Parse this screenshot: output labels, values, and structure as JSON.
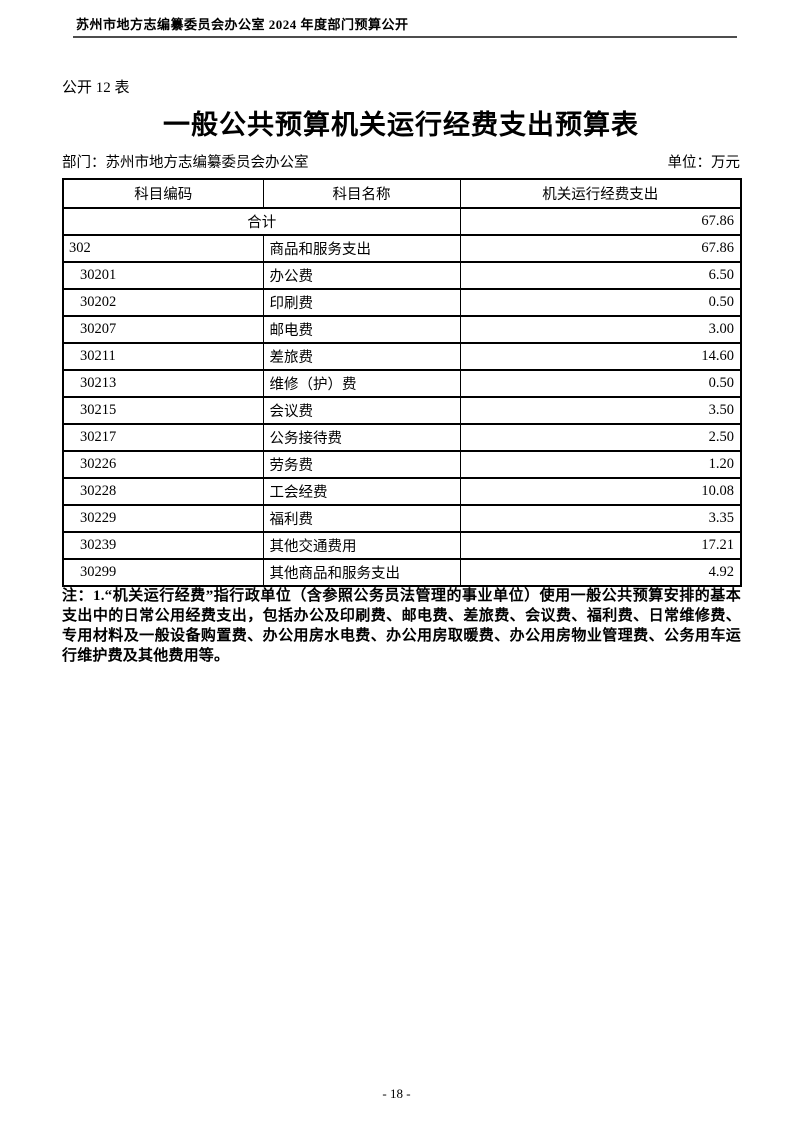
{
  "page": {
    "header": "苏州市地方志编纂委员会办公室 2024 年度部门预算公开",
    "table_label": "公开 12 表",
    "title": "一般公共预算机关运行经费支出预算表",
    "department_label": "部门：苏州市地方志编纂委员会办公室",
    "unit_label": "单位：万元",
    "page_number": "- 18 -"
  },
  "table": {
    "columns": [
      "科目编码",
      "科目名称",
      "机关运行经费支出"
    ],
    "total_row": {
      "label": "合计",
      "value": "67.86"
    },
    "rows": [
      {
        "code": "302",
        "name": "商品和服务支出",
        "value": "67.86",
        "indent": false
      },
      {
        "code": "30201",
        "name": "办公费",
        "value": "6.50",
        "indent": true
      },
      {
        "code": "30202",
        "name": "印刷费",
        "value": "0.50",
        "indent": true
      },
      {
        "code": "30207",
        "name": "邮电费",
        "value": "3.00",
        "indent": true
      },
      {
        "code": "30211",
        "name": "差旅费",
        "value": "14.60",
        "indent": true
      },
      {
        "code": "30213",
        "name": "维修（护）费",
        "value": "0.50",
        "indent": true
      },
      {
        "code": "30215",
        "name": "会议费",
        "value": "3.50",
        "indent": true
      },
      {
        "code": "30217",
        "name": "公务接待费",
        "value": "2.50",
        "indent": true
      },
      {
        "code": "30226",
        "name": "劳务费",
        "value": "1.20",
        "indent": true
      },
      {
        "code": "30228",
        "name": "工会经费",
        "value": "10.08",
        "indent": true
      },
      {
        "code": "30229",
        "name": "福利费",
        "value": "3.35",
        "indent": true
      },
      {
        "code": "30239",
        "name": "其他交通费用",
        "value": "17.21",
        "indent": true
      },
      {
        "code": "30299",
        "name": "其他商品和服务支出",
        "value": "4.92",
        "indent": true
      }
    ]
  },
  "note": "注：1.“机关运行经费”指行政单位（含参照公务员法管理的事业单位）使用一般公共预算安排的基本支出中的日常公用经费支出，包括办公及印刷费、邮电费、差旅费、会议费、福利费、日常维修费、专用材料及一般设备购置费、办公用房水电费、办公用房取暖费、办公用房物业管理费、公务用车运行维护费及其他费用等。"
}
